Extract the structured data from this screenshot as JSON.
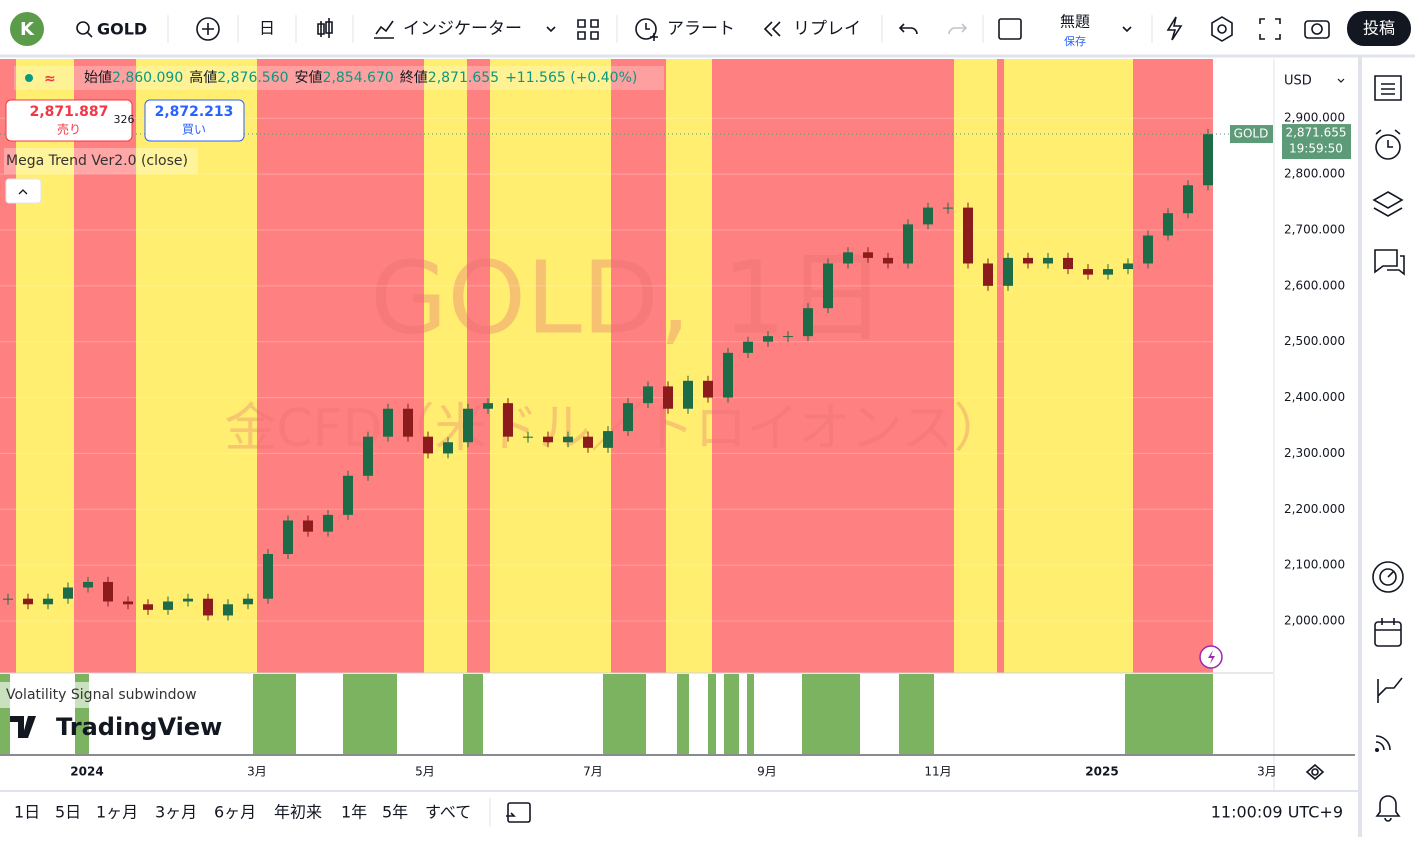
{
  "toolbar": {
    "avatar": "K",
    "symbol": "GOLD",
    "interval": "日",
    "indicators": "インジケーター",
    "alert": "アラート",
    "replay": "リプレイ",
    "layout_name": "無題",
    "save": "保存",
    "publish": "投稿"
  },
  "legend": {
    "open_label": "始値",
    "open": "2,860.090",
    "high_label": "高値",
    "high": "2,876.560",
    "low_label": "安値",
    "low": "2,854.670",
    "close_label": "終値",
    "close": "2,871.655",
    "change": "+11.565 (+0.40%)"
  },
  "trade": {
    "sell_price": "2,871.887",
    "sell": "売り",
    "spread": "326",
    "buy_price": "2,872.213",
    "buy": "買い"
  },
  "indicator": "Mega Trend Ver2.0 (close)",
  "watermark": {
    "symbol": "GOLD, 1日",
    "description": "金CFD（米ドル／トロイオンス）"
  },
  "currency": "USD",
  "price_tag": {
    "price": "2,871.655",
    "countdown": "19:59:50"
  },
  "chart_data": {
    "type": "candlestick",
    "series": [
      {
        "name": "GOLD",
        "up_color": "#1e6b48",
        "down_color": "#8c1c1c",
        "values": [
          2040,
          2030,
          2040,
          2060,
          2070,
          2035,
          2030,
          2020,
          2035,
          2040,
          2010,
          2030,
          2040,
          2120,
          2180,
          2160,
          2190,
          2260,
          2330,
          2380,
          2330,
          2300,
          2320,
          2380,
          2390,
          2330,
          2330,
          2320,
          2330,
          2310,
          2340,
          2390,
          2420,
          2380,
          2430,
          2400,
          2480,
          2500,
          2510,
          2510,
          2560,
          2640,
          2660,
          2650,
          2640,
          2710,
          2740,
          2740,
          2640,
          2600,
          2650,
          2640,
          2650,
          2630,
          2620,
          2630,
          2640,
          2690,
          2730,
          2780,
          2871.655
        ]
      }
    ],
    "ylim": [
      1907,
      3006
    ],
    "yticks": [
      {
        "value": 2000,
        "label": "2,000.000"
      },
      {
        "value": 2100,
        "label": "2,100.000"
      },
      {
        "value": 2200,
        "label": "2,200.000"
      },
      {
        "value": 2300,
        "label": "2,300.000"
      },
      {
        "value": 2400,
        "label": "2,400.000"
      },
      {
        "value": 2500,
        "label": "2,500.000"
      },
      {
        "value": 2600,
        "label": "2,600.000"
      },
      {
        "value": 2700,
        "label": "2,700.000"
      },
      {
        "value": 2800,
        "label": "2,800.000"
      },
      {
        "value": 2900,
        "label": "2,900.000"
      }
    ]
  },
  "time_axis": [
    "2024",
    "3月",
    "5月",
    "7月",
    "9月",
    "11月",
    "2025",
    "3月"
  ],
  "subwindow": "Volatility Signal subwindow",
  "brand": "TradingView",
  "ranges": [
    "1日",
    "5日",
    "1ヶ月",
    "3ヶ月",
    "6ヶ月",
    "年初来",
    "1年",
    "5年",
    "すべて"
  ],
  "clock": "11:00:09 UTC+9"
}
